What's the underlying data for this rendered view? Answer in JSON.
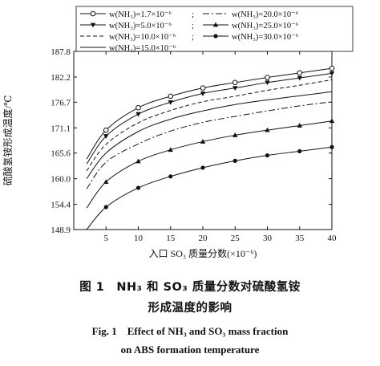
{
  "chart_data": {
    "type": "line",
    "xlabel": "入口 SO₃ 质量分数(×10⁻⁶)",
    "ylabel": "硫酸氢铵形成温度/℃",
    "xlim": [
      0,
      40
    ],
    "ylim": [
      148.9,
      187.8
    ],
    "xticks": [
      5,
      10,
      15,
      20,
      25,
      30,
      35,
      40
    ],
    "xtick_labels": [
      "5",
      "10",
      "15",
      "20",
      "25",
      "30",
      "35",
      "40"
    ],
    "yticks": [
      148.9,
      154.4,
      160.0,
      165.6,
      171.1,
      176.7,
      182.2,
      187.8
    ],
    "ytick_labels": [
      "148.9",
      "154.4",
      "160.0",
      "165.6",
      "171.1",
      "176.7",
      "182.2",
      "187.8"
    ],
    "grid": false,
    "legend_position": "top-left",
    "legend_separator": ";",
    "series": [
      {
        "name": "w(NH₃)=1.7×10⁻⁶",
        "style": "solid",
        "marker": "open-circle",
        "x": [
          2,
          5,
          10,
          15,
          20,
          25,
          30,
          35,
          40
        ],
        "y": [
          164.3,
          170.6,
          175.5,
          178.0,
          179.8,
          181.0,
          182.1,
          183.1,
          184.1
        ]
      },
      {
        "name": "w(NH₃)=20.0×10⁻⁶",
        "style": "dashdot",
        "marker": "none",
        "x": [
          2,
          5,
          10,
          15,
          20,
          25,
          30,
          35,
          40
        ],
        "y": [
          157.8,
          163.6,
          167.6,
          170.4,
          172.3,
          173.6,
          174.8,
          175.9,
          176.8
        ]
      },
      {
        "name": "w(NH₃)=5.0×10⁻⁶",
        "style": "solid",
        "marker": "filled-triangle-down",
        "x": [
          2,
          5,
          10,
          15,
          20,
          25,
          30,
          35,
          40
        ],
        "y": [
          163.2,
          169.3,
          174.1,
          176.7,
          178.6,
          179.8,
          181.0,
          182.0,
          183.0
        ]
      },
      {
        "name": "w(NH₃)=25.0×10⁻⁶",
        "style": "solid",
        "marker": "filled-triangle-up",
        "x": [
          2,
          5,
          10,
          15,
          20,
          25,
          30,
          35,
          40
        ],
        "y": [
          153.6,
          159.3,
          163.8,
          166.3,
          168.1,
          169.5,
          170.6,
          171.6,
          172.6
        ]
      },
      {
        "name": "w(NH₃)=10.0×10⁻⁶",
        "style": "dashed",
        "marker": "none",
        "x": [
          2,
          5,
          10,
          15,
          20,
          25,
          30,
          35,
          40
        ],
        "y": [
          161.7,
          167.5,
          172.2,
          174.9,
          176.8,
          178.0,
          179.3,
          180.4,
          181.6
        ]
      },
      {
        "name": "w(NH₃)=30.0×10⁻⁶",
        "style": "solid",
        "marker": "filled-circle",
        "x": [
          2,
          5,
          10,
          15,
          20,
          25,
          30,
          35,
          40
        ],
        "y": [
          148.9,
          153.8,
          158.0,
          160.5,
          162.4,
          163.9,
          165.1,
          166.0,
          166.9
        ]
      },
      {
        "name": "w(NH₃)=15.0×10⁻⁶",
        "style": "solid",
        "marker": "none",
        "x": [
          2,
          5,
          10,
          15,
          20,
          25,
          30,
          35,
          40
        ],
        "y": [
          160.0,
          165.6,
          170.3,
          173.0,
          174.8,
          176.2,
          177.2,
          178.1,
          179.0
        ]
      }
    ]
  },
  "captions": {
    "cn_line1": "图 1　NH₃ 和 SO₃ 质量分数对硫酸氢铵",
    "cn_line2": "形成温度的影响",
    "en_line1": "Fig. 1　Effect of NH₃ and SO₃ mass fraction",
    "en_line2": "on ABS formation temperature"
  }
}
